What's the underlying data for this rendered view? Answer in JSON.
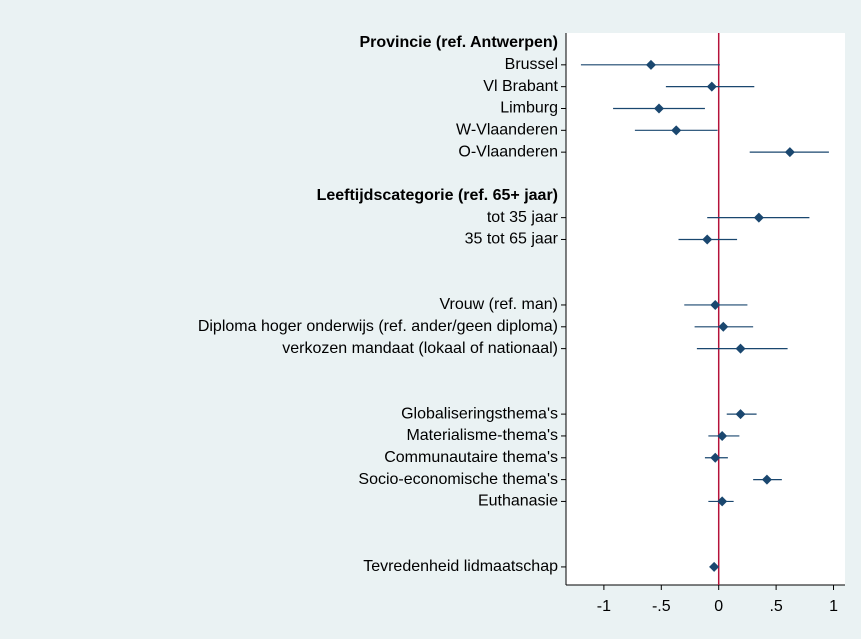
{
  "chart_data": {
    "type": "coefplot",
    "categories": [
      "Provincie (ref. Antwerpen)",
      "Brussel",
      "Vl Brabant",
      "Limburg",
      "W-Vlaanderen",
      "O-Vlaanderen",
      null,
      "Leeftijdscategorie (ref. 65+ jaar)",
      "tot 35 jaar",
      "35 tot 65 jaar",
      null,
      null,
      "Vrouw (ref. man)",
      "Diploma hoger onderwijs (ref. ander/geen diploma)",
      "verkozen mandaat (lokaal of nationaal)",
      null,
      null,
      "Globaliseringsthema's",
      "Materialisme-thema's",
      "Communautaire thema's",
      "Socio-economische thema's",
      "Euthanasie",
      null,
      null,
      "Tevredenheid lidmaatschap"
    ],
    "values": [
      null,
      -0.59,
      -0.06,
      -0.52,
      -0.37,
      0.62,
      null,
      null,
      0.35,
      -0.1,
      null,
      null,
      -0.03,
      0.04,
      0.19,
      null,
      null,
      0.19,
      0.03,
      -0.03,
      0.42,
      0.03,
      null,
      null,
      -0.04
    ],
    "ci_low": [
      null,
      -1.2,
      -0.46,
      -0.92,
      -0.73,
      0.27,
      null,
      null,
      -0.1,
      -0.35,
      null,
      null,
      -0.3,
      -0.21,
      -0.19,
      null,
      null,
      0.07,
      -0.09,
      -0.12,
      0.3,
      -0.09,
      null,
      null,
      -0.08
    ],
    "ci_high": [
      null,
      0.01,
      0.31,
      -0.12,
      -0.01,
      0.96,
      null,
      null,
      0.79,
      0.16,
      null,
      null,
      0.25,
      0.3,
      0.6,
      null,
      null,
      0.33,
      0.18,
      0.08,
      0.55,
      0.13,
      null,
      null,
      -0.01
    ],
    "color": "#1a476f",
    "xline": 0,
    "xline_color": "#b5123a",
    "xlim": [
      -1.33,
      1.1
    ],
    "xticks": [
      -1,
      {
        "value": -0.5,
        "label": "-.5"
      },
      0,
      {
        "value": 0.5,
        "label": ".5"
      },
      1
    ]
  }
}
